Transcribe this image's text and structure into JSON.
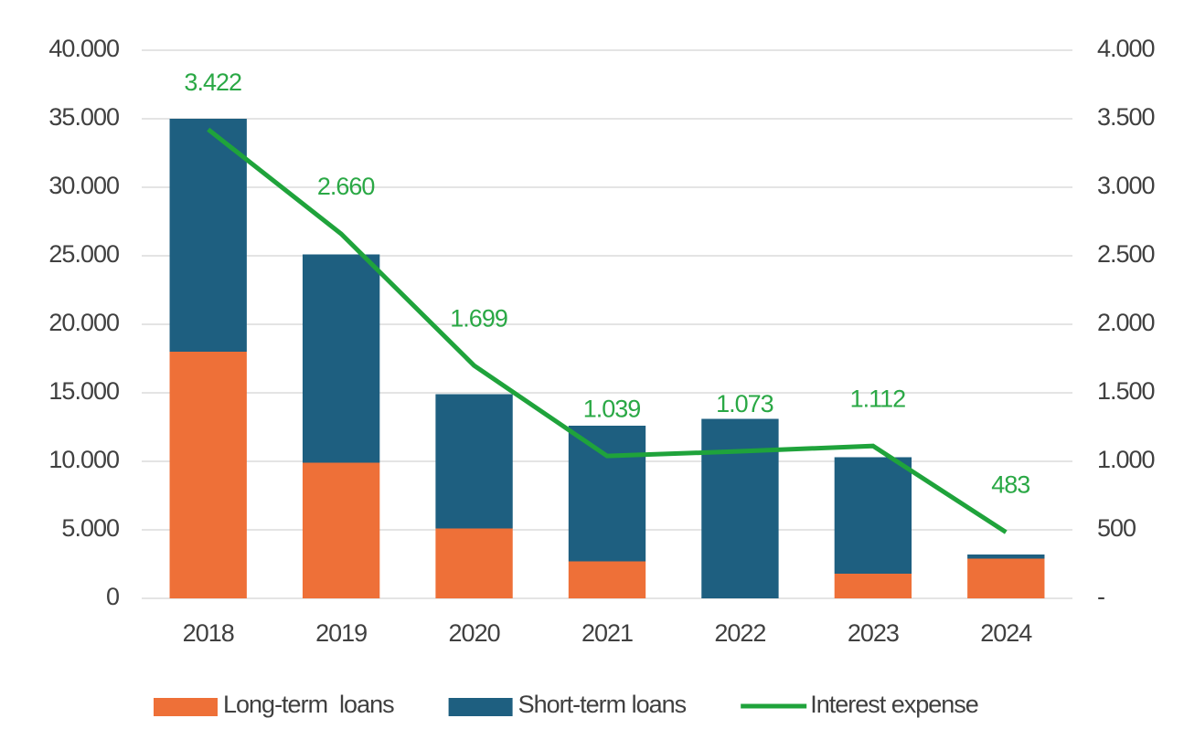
{
  "chart_data": {
    "type": "bar",
    "stacked": true,
    "categories": [
      "2018",
      "2019",
      "2020",
      "2021",
      "2022",
      "2023",
      "2024"
    ],
    "series": [
      {
        "name": "Long-term  loans",
        "type": "bar",
        "color": "#ee7038",
        "values": [
          18000,
          9900,
          5100,
          2700,
          0,
          1800,
          2900
        ]
      },
      {
        "name": "Short-term loans",
        "type": "bar",
        "color": "#1e5f80",
        "values": [
          17000,
          15200,
          9800,
          9900,
          13100,
          8500,
          300
        ]
      },
      {
        "name": "Interest expense",
        "type": "line",
        "axis": "y2",
        "color": "#1fa33b",
        "values": [
          3422,
          2660,
          1699,
          1039,
          1073,
          1112,
          483
        ],
        "value_labels": [
          "3.422",
          "2.660",
          "1.699",
          "1.039",
          "1.073",
          "1.112",
          "483"
        ]
      }
    ],
    "ylim": [
      0,
      40000
    ],
    "yticks": [
      0,
      {
        "value": 5000,
        "label": "5.000"
      },
      {
        "value": 10000,
        "label": "10.000"
      },
      {
        "value": 15000,
        "label": "15.000"
      },
      {
        "value": 20000,
        "label": "20.000"
      },
      {
        "value": 25000,
        "label": "25.000"
      },
      {
        "value": 30000,
        "label": "30.000"
      },
      {
        "value": 35000,
        "label": "35.000"
      },
      {
        "value": 40000,
        "label": "40.000"
      }
    ],
    "y2lim": [
      0,
      4000
    ],
    "y2ticks": [
      {
        "value": 0,
        "label": "-"
      },
      500,
      {
        "value": 1000,
        "label": "1.000"
      },
      {
        "value": 1500,
        "label": "1.500"
      },
      {
        "value": 2000,
        "label": "2.000"
      },
      {
        "value": 2500,
        "label": "2.500"
      },
      {
        "value": 3000,
        "label": "3.000"
      },
      {
        "value": 3500,
        "label": "3.500"
      },
      {
        "value": 4000,
        "label": "4.000"
      }
    ],
    "grid": true,
    "legend": "bottom"
  }
}
